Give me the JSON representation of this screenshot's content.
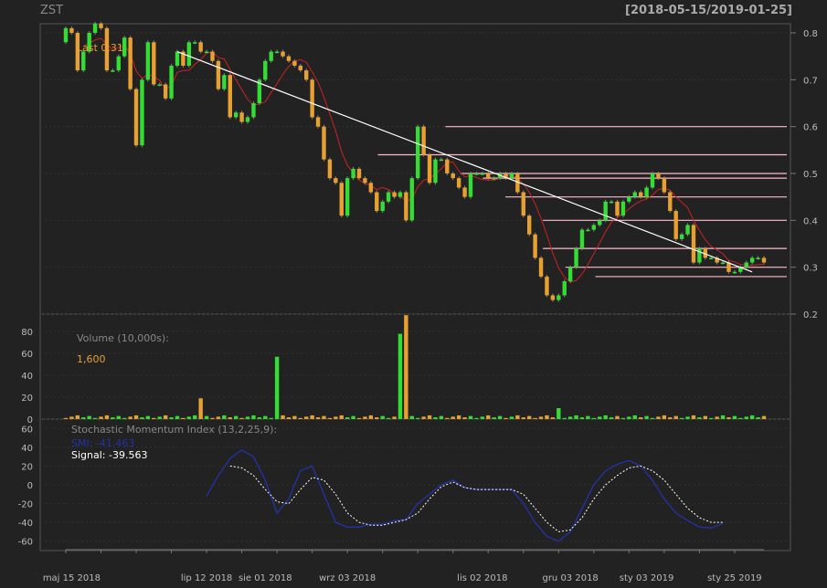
{
  "header": {
    "symbol": "ZST",
    "range": "[2018-05-15/2019-01-25]"
  },
  "chart_data": [
    {
      "type": "candlestick",
      "title": "ZST",
      "last_label": "Last 0.31",
      "y_ticks": [
        "0.8",
        "0.7",
        "0.6",
        "0.5",
        "0.4",
        "0.3",
        "0.2"
      ],
      "ylim": [
        0.2,
        0.82
      ],
      "colors": {
        "up": "#33dd33",
        "down": "#e8a030",
        "ma": "#cc2222",
        "trendline": "#ffffff",
        "support": "#ffbbcc"
      },
      "close": [
        0.81,
        0.8,
        0.72,
        0.76,
        0.8,
        0.82,
        0.81,
        0.72,
        0.72,
        0.75,
        0.79,
        0.68,
        0.56,
        0.7,
        0.78,
        0.69,
        0.69,
        0.66,
        0.73,
        0.76,
        0.73,
        0.78,
        0.78,
        0.76,
        0.76,
        0.74,
        0.68,
        0.71,
        0.62,
        0.63,
        0.61,
        0.62,
        0.65,
        0.7,
        0.74,
        0.76,
        0.76,
        0.75,
        0.74,
        0.73,
        0.72,
        0.7,
        0.62,
        0.6,
        0.53,
        0.49,
        0.48,
        0.41,
        0.49,
        0.51,
        0.49,
        0.48,
        0.46,
        0.42,
        0.44,
        0.46,
        0.45,
        0.46,
        0.4,
        0.49,
        0.6,
        0.54,
        0.48,
        0.53,
        0.53,
        0.5,
        0.49,
        0.47,
        0.45,
        0.5,
        0.5,
        0.5,
        0.49,
        0.49,
        0.5,
        0.49,
        0.5,
        0.46,
        0.41,
        0.37,
        0.32,
        0.28,
        0.24,
        0.23,
        0.24,
        0.27,
        0.3,
        0.34,
        0.38,
        0.38,
        0.39,
        0.4,
        0.44,
        0.44,
        0.41,
        0.44,
        0.45,
        0.46,
        0.45,
        0.47,
        0.5,
        0.49,
        0.46,
        0.42,
        0.36,
        0.37,
        0.39,
        0.31,
        0.34,
        0.32,
        0.32,
        0.31,
        0.31,
        0.29,
        0.29,
        0.3,
        0.31,
        0.32,
        0.32,
        0.31
      ],
      "support_levels": [
        0.6,
        0.54,
        0.5,
        0.49,
        0.45,
        0.4,
        0.34,
        0.3,
        0.28
      ],
      "trendline": {
        "from": [
          19,
          0.76
        ],
        "to": [
          117,
          0.29
        ]
      },
      "volume": {
        "label": "Volume (10,000s):",
        "last": "1,600",
        "y_ticks": [
          "80",
          "60",
          "40",
          "20",
          "0"
        ],
        "ylim": [
          0,
          96
        ],
        "spikes": [
          {
            "i": 23,
            "v": 19
          },
          {
            "i": 36,
            "v": 57
          },
          {
            "i": 57,
            "v": 78
          },
          {
            "i": 58,
            "v": 95
          },
          {
            "i": 84,
            "v": 10
          }
        ]
      },
      "smi": {
        "label": "Stochastic Momentum Index (13,2,25,9):",
        "smi_label": "SMI: -41.463",
        "signal_label": "Signal: -39.563",
        "y_ticks": [
          "60",
          "40",
          "20",
          "0",
          "-20",
          "-40",
          "-60"
        ],
        "ylim": [
          -70,
          70
        ],
        "smi": [
          [
            24,
            -12
          ],
          [
            26,
            10
          ],
          [
            28,
            28
          ],
          [
            30,
            37
          ],
          [
            32,
            30
          ],
          [
            34,
            5
          ],
          [
            36,
            -30
          ],
          [
            38,
            -15
          ],
          [
            40,
            15
          ],
          [
            42,
            20
          ],
          [
            44,
            -10
          ],
          [
            46,
            -40
          ],
          [
            48,
            -45
          ],
          [
            50,
            -45
          ],
          [
            52,
            -42
          ],
          [
            54,
            -42
          ],
          [
            56,
            -38
          ],
          [
            58,
            -37
          ],
          [
            60,
            -20
          ],
          [
            62,
            -10
          ],
          [
            64,
            0
          ],
          [
            66,
            5
          ],
          [
            68,
            -3
          ],
          [
            70,
            -5
          ],
          [
            72,
            -5
          ],
          [
            74,
            -5
          ],
          [
            76,
            -5
          ],
          [
            78,
            -20
          ],
          [
            80,
            -40
          ],
          [
            82,
            -55
          ],
          [
            84,
            -60
          ],
          [
            86,
            -50
          ],
          [
            88,
            -25
          ],
          [
            90,
            0
          ],
          [
            92,
            15
          ],
          [
            94,
            22
          ],
          [
            96,
            26
          ],
          [
            98,
            20
          ],
          [
            100,
            5
          ],
          [
            102,
            -15
          ],
          [
            104,
            -30
          ],
          [
            106,
            -38
          ],
          [
            108,
            -45
          ],
          [
            110,
            -46
          ],
          [
            112,
            -41
          ]
        ],
        "signal": [
          [
            28,
            20
          ],
          [
            30,
            18
          ],
          [
            32,
            10
          ],
          [
            34,
            -5
          ],
          [
            36,
            -18
          ],
          [
            38,
            -20
          ],
          [
            40,
            -5
          ],
          [
            42,
            8
          ],
          [
            44,
            5
          ],
          [
            46,
            -10
          ],
          [
            48,
            -30
          ],
          [
            50,
            -40
          ],
          [
            52,
            -43
          ],
          [
            54,
            -43
          ],
          [
            56,
            -40
          ],
          [
            58,
            -37
          ],
          [
            60,
            -30
          ],
          [
            62,
            -15
          ],
          [
            64,
            -2
          ],
          [
            66,
            3
          ],
          [
            68,
            -3
          ],
          [
            70,
            -5
          ],
          [
            72,
            -5
          ],
          [
            74,
            -5
          ],
          [
            76,
            -5
          ],
          [
            78,
            -10
          ],
          [
            80,
            -25
          ],
          [
            82,
            -40
          ],
          [
            84,
            -50
          ],
          [
            86,
            -48
          ],
          [
            88,
            -35
          ],
          [
            90,
            -15
          ],
          [
            92,
            0
          ],
          [
            94,
            10
          ],
          [
            96,
            18
          ],
          [
            98,
            20
          ],
          [
            100,
            15
          ],
          [
            102,
            5
          ],
          [
            104,
            -10
          ],
          [
            106,
            -25
          ],
          [
            108,
            -35
          ],
          [
            110,
            -40
          ],
          [
            112,
            -40
          ]
        ],
        "smi_color": "#2233aa",
        "signal_color": "#ffffff"
      },
      "x_tick_labels": [
        {
          "i": 1,
          "t": "maj 15 2018"
        },
        {
          "i": 24,
          "t": "lip 12 2018"
        },
        {
          "i": 34,
          "t": "sie 01 2018"
        },
        {
          "i": 48,
          "t": "wrz 03 2018"
        },
        {
          "i": 71,
          "t": "lis 02 2018"
        },
        {
          "i": 86,
          "t": "gru 03 2018"
        },
        {
          "i": 99,
          "t": "sty 03 2019"
        },
        {
          "i": 114,
          "t": "sty 25 2019"
        }
      ]
    }
  ]
}
